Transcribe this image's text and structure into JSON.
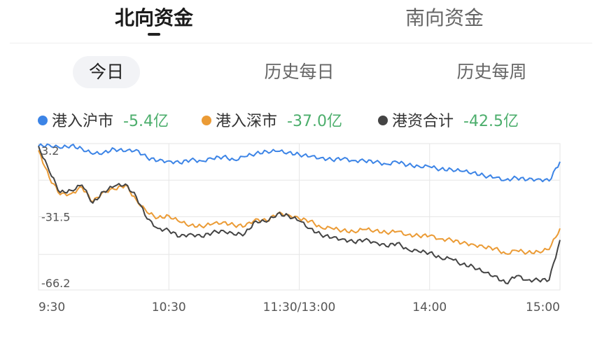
{
  "top_tabs": [
    {
      "label": "北向资金",
      "active": true
    },
    {
      "label": "南向资金",
      "active": false
    }
  ],
  "sub_tabs": [
    {
      "label": "今日",
      "active": true
    },
    {
      "label": "历史每日",
      "active": false
    },
    {
      "label": "历史每周",
      "active": false
    }
  ],
  "legend": [
    {
      "name": "港入沪市",
      "value": "-5.4亿",
      "color": "#3c84e6"
    },
    {
      "name": "港入深市",
      "value": "-37.0亿",
      "color": "#eb9b35"
    },
    {
      "name": "港资合计",
      "value": "-42.5亿",
      "color": "#444444"
    }
  ],
  "colors": {
    "positive": "#4cae6c",
    "grid": "#e6e6e6"
  },
  "chart_data": {
    "type": "line",
    "xlabel": "",
    "ylabel": "",
    "x_ticks": [
      "9:30",
      "10:30",
      "11:30/13:00",
      "14:00",
      "15:00"
    ],
    "y_ticks": [
      3.2,
      -31.5,
      -66.2
    ],
    "ylim": [
      3.2,
      -66.2
    ],
    "x_domain_minutes": [
      0,
      240
    ],
    "x": [
      0,
      5,
      10,
      15,
      20,
      25,
      30,
      35,
      40,
      45,
      50,
      55,
      60,
      65,
      70,
      75,
      80,
      85,
      90,
      95,
      100,
      105,
      110,
      115,
      120,
      125,
      130,
      135,
      140,
      145,
      150,
      155,
      160,
      165,
      170,
      175,
      180,
      185,
      190,
      195,
      200,
      205,
      210,
      215,
      220,
      225,
      230,
      235,
      240
    ],
    "series": [
      {
        "name": "港入沪市",
        "color": "#3c84e6",
        "values": [
          2.0,
          2.6,
          1.0,
          2.3,
          0.8,
          -1.8,
          -1.0,
          0.6,
          -0.5,
          0.3,
          -3.5,
          -5.0,
          -5.0,
          -6.0,
          -4.5,
          -5.0,
          -4.0,
          -3.0,
          -4.5,
          -3.0,
          -1.5,
          -0.5,
          -0.5,
          -1.0,
          -2.0,
          -3.0,
          -3.5,
          -4.5,
          -4.0,
          -4.8,
          -5.0,
          -5.5,
          -6.5,
          -5.5,
          -7.0,
          -7.5,
          -7.8,
          -9.0,
          -9.0,
          -10.0,
          -10.5,
          -12.0,
          -13.0,
          -14.0,
          -13.0,
          -14.0,
          -13.5,
          -14.5,
          -5.4
        ]
      },
      {
        "name": "港入深市",
        "color": "#eb9b35",
        "values": [
          0.0,
          -13.0,
          -21.0,
          -20.5,
          -17.5,
          -24.5,
          -19.5,
          -18.5,
          -16.5,
          -23.5,
          -29.5,
          -32.0,
          -31.0,
          -34.0,
          -35.5,
          -36.0,
          -35.0,
          -34.0,
          -35.5,
          -36.0,
          -32.5,
          -33.5,
          -30.0,
          -30.5,
          -32.5,
          -33.5,
          -36.5,
          -37.0,
          -38.0,
          -38.5,
          -37.5,
          -38.0,
          -39.0,
          -38.5,
          -40.0,
          -40.5,
          -40.5,
          -42.0,
          -42.5,
          -44.0,
          -44.5,
          -46.0,
          -46.5,
          -49.0,
          -47.5,
          -48.5,
          -48.0,
          -47.0,
          -37.0
        ]
      },
      {
        "name": "港资合计",
        "color": "#444444",
        "values": [
          2.0,
          -10.0,
          -20.0,
          -19.0,
          -16.5,
          -25.0,
          -19.5,
          -17.0,
          -16.0,
          -22.0,
          -32.5,
          -37.0,
          -38.0,
          -41.0,
          -39.5,
          -41.0,
          -39.0,
          -38.0,
          -40.0,
          -39.5,
          -33.5,
          -34.0,
          -30.0,
          -31.0,
          -33.5,
          -37.0,
          -40.0,
          -41.5,
          -42.0,
          -43.5,
          -42.5,
          -43.5,
          -45.5,
          -44.0,
          -47.0,
          -48.0,
          -48.5,
          -51.0,
          -51.5,
          -54.0,
          -55.0,
          -58.0,
          -59.5,
          -63.0,
          -59.5,
          -61.5,
          -61.5,
          -61.5,
          -42.5
        ]
      }
    ],
    "grid": true,
    "legend_position": "top"
  }
}
